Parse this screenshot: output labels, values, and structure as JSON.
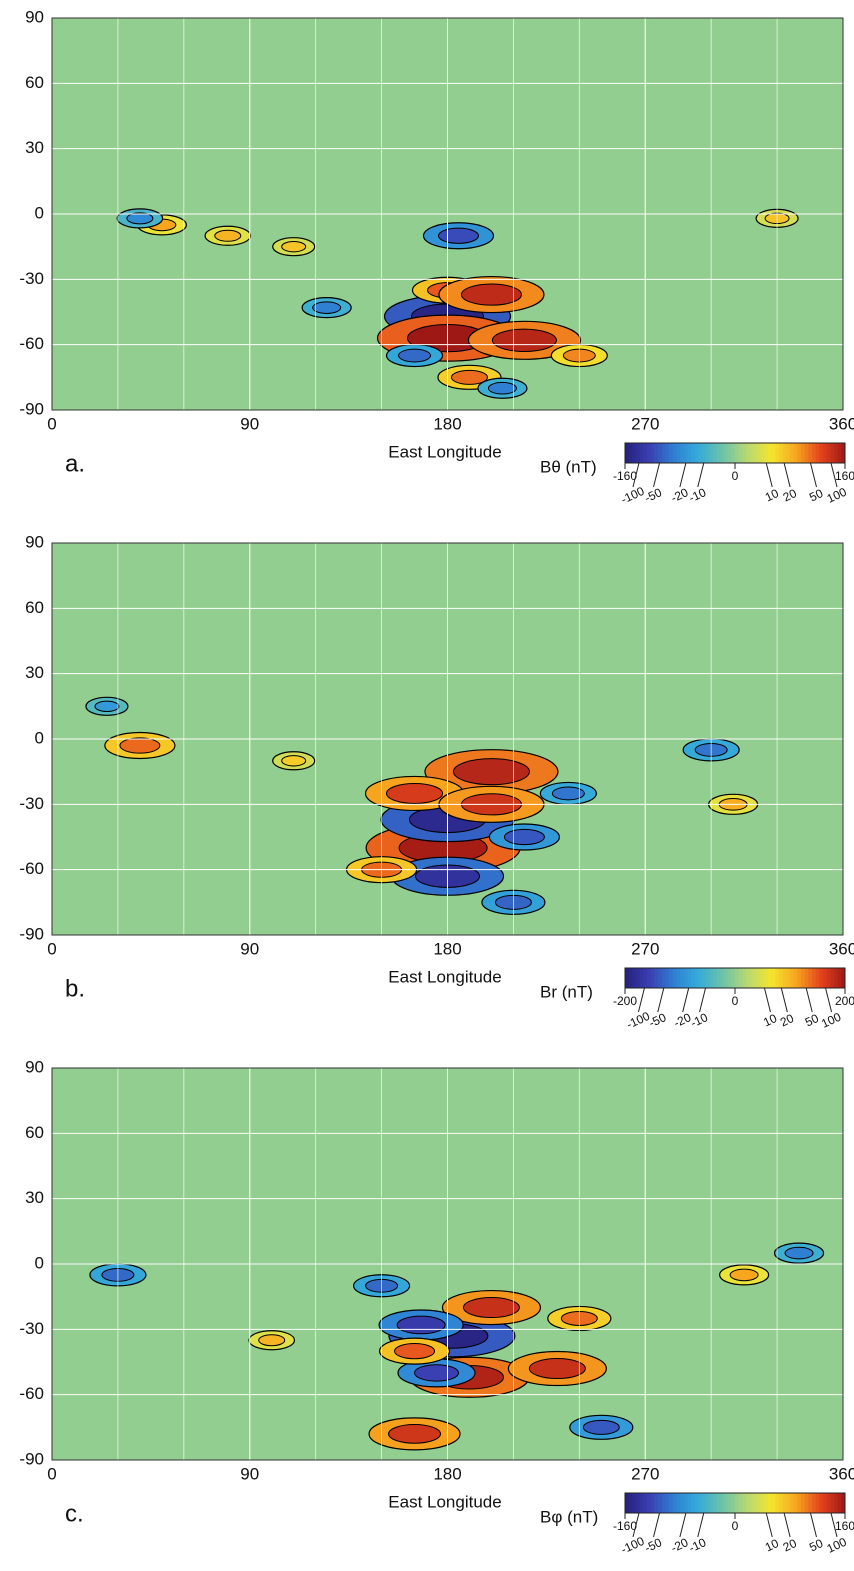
{
  "chart_data": [
    {
      "type": "map",
      "panel_label": "a.",
      "x_label": "East Longitude",
      "xlim": [
        0,
        360
      ],
      "xticks": [
        0,
        90,
        180,
        270,
        360
      ],
      "ylim": [
        -90,
        90
      ],
      "yticks": [
        -90,
        -60,
        -30,
        0,
        30,
        60,
        90
      ],
      "grid": true,
      "colorbar": {
        "label": "Bθ (nT)",
        "lim": [
          -160,
          160
        ],
        "ticks": [
          -160,
          -100,
          -50,
          -20,
          -10,
          0,
          10,
          20,
          50,
          100,
          160
        ],
        "colors": [
          "#25207c",
          "#3a3fb2",
          "#2f7fd3",
          "#35abd9",
          "#6cc3aa",
          "#b8d873",
          "#f4e52e",
          "#f7a51e",
          "#e4441d",
          "#9e1815"
        ]
      },
      "x": [
        180,
        180,
        215,
        180,
        200,
        185,
        165,
        190,
        50,
        40,
        80,
        110,
        330,
        240,
        125,
        205
      ],
      "y": [
        -47,
        -57,
        -58,
        -35,
        -37,
        -10,
        -65,
        -75,
        -5,
        -2,
        -10,
        -15,
        -2,
        -65,
        -43,
        -80
      ],
      "values": [
        -140,
        160,
        120,
        60,
        110,
        -60,
        -40,
        50,
        30,
        -25,
        25,
        20,
        20,
        40,
        -30,
        -30
      ]
    },
    {
      "type": "map",
      "panel_label": "b.",
      "x_label": "East Longitude",
      "xlim": [
        0,
        360
      ],
      "xticks": [
        0,
        90,
        180,
        270,
        360
      ],
      "ylim": [
        -90,
        90
      ],
      "yticks": [
        -90,
        -60,
        -30,
        0,
        30,
        60,
        90
      ],
      "grid": true,
      "colorbar": {
        "label": "Br (nT)",
        "lim": [
          -200,
          200
        ],
        "ticks": [
          -200,
          -100,
          -50,
          -20,
          -10,
          0,
          10,
          20,
          50,
          100,
          200
        ],
        "colors": [
          "#25207c",
          "#3a3fb2",
          "#2f7fd3",
          "#35abd9",
          "#6cc3aa",
          "#b8d873",
          "#f4e52e",
          "#f7a51e",
          "#e4441d",
          "#9e1815"
        ]
      },
      "x": [
        178,
        180,
        180,
        200,
        165,
        200,
        215,
        150,
        40,
        25,
        300,
        310,
        235,
        110,
        210
      ],
      "y": [
        -50,
        -37,
        -63,
        -15,
        -25,
        -30,
        -45,
        -60,
        -3,
        15,
        -5,
        -30,
        -25,
        -10,
        -75
      ],
      "values": [
        180,
        -150,
        -120,
        150,
        100,
        110,
        -60,
        60,
        60,
        -20,
        -40,
        30,
        -40,
        20,
        -50
      ]
    },
    {
      "type": "map",
      "panel_label": "c.",
      "x_label": "East Longitude",
      "xlim": [
        0,
        360
      ],
      "xticks": [
        0,
        90,
        180,
        270,
        360
      ],
      "ylim": [
        -90,
        90
      ],
      "yticks": [
        -90,
        -60,
        -30,
        0,
        30,
        60,
        90
      ],
      "grid": true,
      "colorbar": {
        "label": "Bφ (nT)",
        "lim": [
          -160,
          160
        ],
        "ticks": [
          -160,
          -100,
          -50,
          -20,
          -10,
          0,
          10,
          20,
          50,
          100,
          160
        ],
        "colors": [
          "#25207c",
          "#3a3fb2",
          "#2f7fd3",
          "#35abd9",
          "#6cc3aa",
          "#b8d873",
          "#f4e52e",
          "#f7a51e",
          "#e4441d",
          "#9e1815"
        ]
      },
      "x": [
        182,
        190,
        200,
        168,
        165,
        230,
        175,
        165,
        250,
        240,
        30,
        315,
        100,
        340,
        150
      ],
      "y": [
        -33,
        -52,
        -20,
        -28,
        -78,
        -48,
        -50,
        -40,
        -75,
        -25,
        -5,
        -5,
        -35,
        5,
        -10
      ],
      "values": [
        -140,
        130,
        100,
        -80,
        90,
        100,
        -70,
        60,
        -50,
        50,
        -40,
        30,
        25,
        -30,
        -40
      ]
    }
  ]
}
